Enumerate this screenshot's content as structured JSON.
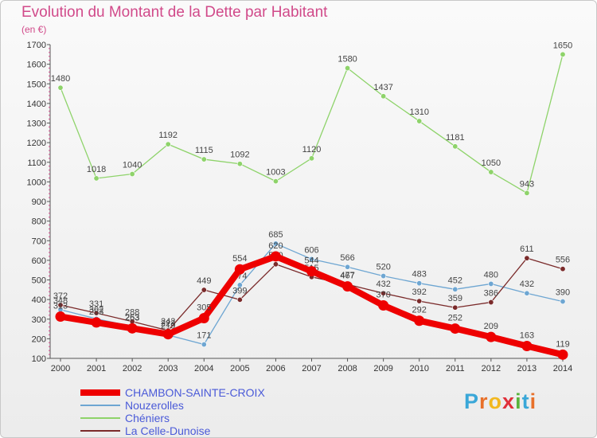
{
  "title": "Evolution du Montant de la Dette par Habitant",
  "unit": "(en €)",
  "logo": {
    "letters": [
      "P",
      "r",
      "o",
      "x",
      "i",
      "t",
      "i"
    ],
    "colors": [
      "#3aa7d8",
      "#e8702a",
      "#f2b81f",
      "#e0303a",
      "#5ab43c",
      "#3aa7d8",
      "#e8702a"
    ]
  },
  "chart_data": {
    "type": "line",
    "x": [
      "2000",
      "2001",
      "2002",
      "2003",
      "2004",
      "2005",
      "2006",
      "2007",
      "2008",
      "2009",
      "2010",
      "2011",
      "2012",
      "2013",
      "2014"
    ],
    "ylim": [
      100,
      1700
    ],
    "yticks": [
      100,
      200,
      300,
      400,
      500,
      600,
      700,
      800,
      900,
      1000,
      1100,
      1200,
      1300,
      1400,
      1500,
      1600,
      1700
    ],
    "grid": false,
    "legend_position": "bottom-left",
    "series": [
      {
        "name": "Nouzerolles",
        "color": "#6ea6d2",
        "values": [
          348,
          302,
          263,
          219,
          171,
          474,
          685,
          606,
          566,
          520,
          483,
          452,
          480,
          432,
          390
        ]
      },
      {
        "name": "Chéniers",
        "color": "#8ed36a",
        "values": [
          1480,
          1018,
          1040,
          1192,
          1115,
          1092,
          1003,
          1120,
          1580,
          1437,
          1310,
          1181,
          1050,
          943,
          1650
        ]
      },
      {
        "name": "La Celle-Dunoise",
        "color": "#7a2a2a",
        "values": [
          372,
          331,
          288,
          242,
          449,
          399,
          580,
          515,
          477,
          432,
          392,
          359,
          386,
          611,
          556
        ]
      },
      {
        "name": "CHAMBON-SAINTE-CROIX",
        "color": "#ee0000",
        "values": [
          313,
          283,
          253,
          223,
          305,
          554,
          620,
          544,
          467,
          370,
          292,
          252,
          209,
          163,
          119
        ]
      }
    ]
  }
}
